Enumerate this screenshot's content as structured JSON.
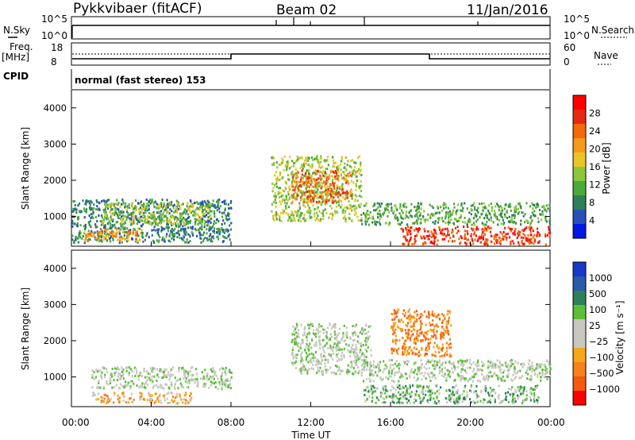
{
  "header": {
    "station": "Pykkvibaer (fitACF)",
    "beam": "Beam 02",
    "date": "11/Jan/2016"
  },
  "strips": {
    "nsky_label": "N.Sky",
    "nsky_ticks": [
      "10^5",
      "10^0"
    ],
    "nsearch_label": "N.Search",
    "nsearch_ticks": [
      "10^5",
      "10^0"
    ],
    "freq_label_1": "Freq.",
    "freq_label_2": "[MHz]",
    "freq_ticks": [
      "18",
      "8"
    ],
    "nave_label": "Nave",
    "nave_ticks": [
      "60",
      "0"
    ],
    "cpid_label": "CPID",
    "cpid_text": "normal (fast stereo) 153"
  },
  "colors": {
    "power_scale": [
      "#0018e0",
      "#2a50b8",
      "#2f7f5a",
      "#4aaa3a",
      "#8cc63c",
      "#e8c628",
      "#f59a1a",
      "#f26a0a",
      "#e62a12",
      "#ff0000"
    ],
    "velocity_scale": [
      "#1838c8",
      "#2a5aa8",
      "#2f7f5a",
      "#5bbf3a",
      "#c8c8c0",
      "#c8c8c0",
      "#f5a81a",
      "#f5821a",
      "#f25a10",
      "#ff0000"
    ]
  },
  "chart_data": [
    {
      "type": "heatmap",
      "panel": "power",
      "ylabel": "Slant Range [km]",
      "yticks": [
        "4000",
        "3000",
        "2000",
        "1000"
      ],
      "ylim": [
        180,
        4500
      ],
      "colorbar_label": "Power [dB]",
      "colorbar_ticks": [
        "28",
        "24",
        "20",
        "16",
        "12",
        "8",
        "4"
      ],
      "clim": [
        0,
        30
      ],
      "regions": [
        {
          "t0": 0.0,
          "t1": 8.0,
          "r0": 300,
          "r1": 1500,
          "value": 8
        },
        {
          "t0": 0.5,
          "t1": 3.5,
          "r0": 350,
          "r1": 700,
          "value": 20
        },
        {
          "t0": 1.5,
          "t1": 7.0,
          "r0": 800,
          "r1": 1400,
          "value": 14
        },
        {
          "t0": 10.0,
          "t1": 14.5,
          "r0": 900,
          "r1": 2700,
          "value": 14
        },
        {
          "t0": 11.0,
          "t1": 14.0,
          "r0": 1400,
          "r1": 2300,
          "value": 22
        },
        {
          "t0": 14.5,
          "t1": 24.0,
          "r0": 800,
          "r1": 1400,
          "value": 10
        },
        {
          "t0": 16.5,
          "t1": 24.0,
          "r0": 250,
          "r1": 750,
          "value": 28
        }
      ]
    },
    {
      "type": "heatmap",
      "panel": "velocity",
      "ylabel": "Slant Range [km]",
      "yticks": [
        "4000",
        "3000",
        "2000",
        "1000"
      ],
      "ylim": [
        180,
        4500
      ],
      "colorbar_label": "Velocity [m s⁻¹]",
      "colorbar_ticks": [
        "1000",
        "500",
        "100",
        "25",
        "−25",
        "−100",
        "−500",
        "−1000"
      ],
      "regions": [
        {
          "t0": 1.0,
          "t1": 8.0,
          "r0": 700,
          "r1": 1300,
          "value": 0
        },
        {
          "t0": 1.0,
          "t1": 6.0,
          "r0": 300,
          "r1": 600,
          "value": -100
        },
        {
          "t0": 11.0,
          "t1": 15.0,
          "r0": 1100,
          "r1": 2500,
          "value": 0
        },
        {
          "t0": 14.5,
          "t1": 24.0,
          "r0": 900,
          "r1": 1500,
          "value": 0
        },
        {
          "t0": 14.5,
          "t1": 23.5,
          "r0": 300,
          "r1": 800,
          "value": 100
        },
        {
          "t0": 16.0,
          "t1": 19.0,
          "r0": 1600,
          "r1": 2900,
          "value": -500
        }
      ]
    }
  ],
  "xaxis": {
    "label": "Time UT",
    "ticks": [
      "00:00",
      "04:00",
      "08:00",
      "12:00",
      "16:00",
      "20:00",
      "00:00"
    ]
  }
}
